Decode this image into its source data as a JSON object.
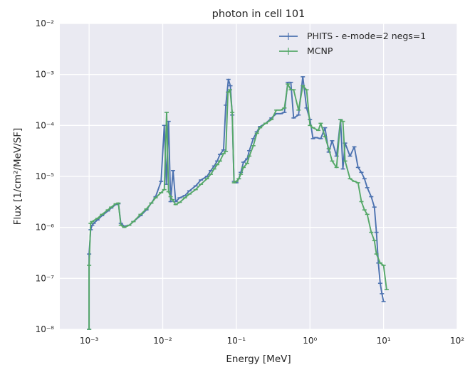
{
  "chart_data": {
    "type": "line",
    "title": "photon in cell 101",
    "xlabel": "Energy [MeV]",
    "ylabel": "Flux [1/cm²/MeV/SF]",
    "x_scale": "log",
    "y_scale": "log",
    "xlim": [
      0.0004,
      100
    ],
    "ylim": [
      1e-08,
      0.01
    ],
    "grid": true,
    "legend_position": "top-right",
    "x_ticks": [
      {
        "value": 0.001,
        "label": "10⁻³"
      },
      {
        "value": 0.01,
        "label": "10⁻²"
      },
      {
        "value": 0.1,
        "label": "10⁻¹"
      },
      {
        "value": 1,
        "label": "10⁰"
      },
      {
        "value": 10,
        "label": "10¹"
      },
      {
        "value": 100,
        "label": "10²"
      }
    ],
    "y_ticks": [
      {
        "value": 1e-08,
        "label": "10⁻⁸"
      },
      {
        "value": 1e-07,
        "label": "10⁻⁷"
      },
      {
        "value": 1e-06,
        "label": "10⁻⁶"
      },
      {
        "value": 1e-05,
        "label": "10⁻⁵"
      },
      {
        "value": 0.0001,
        "label": "10⁻⁴"
      },
      {
        "value": 0.001,
        "label": "10⁻³"
      },
      {
        "value": 0.01,
        "label": "10⁻²"
      }
    ],
    "series": [
      {
        "name": "PHITS - e-mode=2  negs=1",
        "color": "#4c72b0",
        "points": [
          [
            0.001,
            1e-08
          ],
          [
            0.001,
            3e-07
          ],
          [
            0.00105,
            9e-07
          ],
          [
            0.0011,
            1.1e-06
          ],
          [
            0.00115,
            1.2e-06
          ],
          [
            0.0013,
            1.4e-06
          ],
          [
            0.0015,
            1.7e-06
          ],
          [
            0.0018,
            2.1e-06
          ],
          [
            0.002,
            2.4e-06
          ],
          [
            0.0023,
            2.8e-06
          ],
          [
            0.0025,
            2.9e-06
          ],
          [
            0.0027,
            1.2e-06
          ],
          [
            0.003,
            1.05e-06
          ],
          [
            0.0035,
            1.1e-06
          ],
          [
            0.004,
            1.3e-06
          ],
          [
            0.005,
            1.7e-06
          ],
          [
            0.006,
            2.2e-06
          ],
          [
            0.007,
            3e-06
          ],
          [
            0.008,
            4e-06
          ],
          [
            0.0095,
            8e-06
          ],
          [
            0.0105,
            0.0001
          ],
          [
            0.0112,
            7e-06
          ],
          [
            0.012,
            0.00012
          ],
          [
            0.0128,
            3.2e-06
          ],
          [
            0.0138,
            1.3e-05
          ],
          [
            0.015,
            3.2e-06
          ],
          [
            0.017,
            3.8e-06
          ],
          [
            0.02,
            4.2e-06
          ],
          [
            0.023,
            5.2e-06
          ],
          [
            0.028,
            6.5e-06
          ],
          [
            0.033,
            8.5e-06
          ],
          [
            0.04,
            1e-05
          ],
          [
            0.045,
            1.3e-05
          ],
          [
            0.05,
            1.6e-05
          ],
          [
            0.055,
            2e-05
          ],
          [
            0.06,
            2.7e-05
          ],
          [
            0.067,
            3.3e-05
          ],
          [
            0.072,
            0.00025
          ],
          [
            0.078,
            0.0008
          ],
          [
            0.083,
            0.0006
          ],
          [
            0.088,
            0.00016
          ],
          [
            0.093,
            8e-06
          ],
          [
            0.1,
            7.5e-06
          ],
          [
            0.108,
            9e-06
          ],
          [
            0.115,
            1.2e-05
          ],
          [
            0.125,
            1.9e-05
          ],
          [
            0.14,
            2.2e-05
          ],
          [
            0.15,
            3.2e-05
          ],
          [
            0.17,
            5.5e-05
          ],
          [
            0.19,
            7.5e-05
          ],
          [
            0.21,
            9.5e-05
          ],
          [
            0.25,
            0.00011
          ],
          [
            0.3,
            0.00014
          ],
          [
            0.35,
            0.00017
          ],
          [
            0.4,
            0.00017
          ],
          [
            0.45,
            0.00018
          ],
          [
            0.5,
            0.0007
          ],
          [
            0.55,
            0.0007
          ],
          [
            0.6,
            0.00014
          ],
          [
            0.7,
            0.00016
          ],
          [
            0.8,
            0.0009
          ],
          [
            0.9,
            0.00022
          ],
          [
            1.0,
            0.00013
          ],
          [
            1.1,
            5.5e-05
          ],
          [
            1.2,
            5.8e-05
          ],
          [
            1.4,
            5.5e-05
          ],
          [
            1.6,
            9e-05
          ],
          [
            1.8,
            3e-05
          ],
          [
            2.0,
            5e-05
          ],
          [
            2.3,
            2.5e-05
          ],
          [
            2.6,
            0.00013
          ],
          [
            2.8,
            1.4e-05
          ],
          [
            3.0,
            4.5e-05
          ],
          [
            3.5,
            2.5e-05
          ],
          [
            4.0,
            3.8e-05
          ],
          [
            4.5,
            1.5e-05
          ],
          [
            5.0,
            1.2e-05
          ],
          [
            5.5,
            9e-06
          ],
          [
            6.0,
            6e-06
          ],
          [
            6.8,
            4e-06
          ],
          [
            7.5,
            2.5e-06
          ],
          [
            8.0,
            8e-07
          ],
          [
            8.5,
            2e-07
          ],
          [
            9.0,
            8e-08
          ],
          [
            9.5,
            5e-08
          ],
          [
            10.0,
            3.5e-08
          ]
        ]
      },
      {
        "name": "MCNP",
        "color": "#55a868",
        "points": [
          [
            0.001,
            1e-08
          ],
          [
            0.001,
            1.8e-07
          ],
          [
            0.00105,
            1.2e-06
          ],
          [
            0.0011,
            1.3e-06
          ],
          [
            0.0013,
            1.5e-06
          ],
          [
            0.0015,
            1.8e-06
          ],
          [
            0.0018,
            2.2e-06
          ],
          [
            0.002,
            2.5e-06
          ],
          [
            0.0023,
            2.9e-06
          ],
          [
            0.0025,
            3e-06
          ],
          [
            0.0027,
            1.1e-06
          ],
          [
            0.003,
            1e-06
          ],
          [
            0.0035,
            1.1e-06
          ],
          [
            0.004,
            1.3e-06
          ],
          [
            0.005,
            1.8e-06
          ],
          [
            0.006,
            2.3e-06
          ],
          [
            0.007,
            3e-06
          ],
          [
            0.008,
            3.8e-06
          ],
          [
            0.0095,
            4.8e-06
          ],
          [
            0.0105,
            5.5e-06
          ],
          [
            0.0113,
            0.00018
          ],
          [
            0.012,
            5e-06
          ],
          [
            0.0128,
            4e-06
          ],
          [
            0.0135,
            3.5e-06
          ],
          [
            0.015,
            2.8e-06
          ],
          [
            0.017,
            3.1e-06
          ],
          [
            0.02,
            3.8e-06
          ],
          [
            0.023,
            4.5e-06
          ],
          [
            0.028,
            5.5e-06
          ],
          [
            0.033,
            7e-06
          ],
          [
            0.04,
            9e-06
          ],
          [
            0.045,
            1.1e-05
          ],
          [
            0.05,
            1.4e-05
          ],
          [
            0.055,
            1.7e-05
          ],
          [
            0.06,
            2e-05
          ],
          [
            0.067,
            2.8e-05
          ],
          [
            0.072,
            3.1e-05
          ],
          [
            0.077,
            0.00045
          ],
          [
            0.082,
            0.0005
          ],
          [
            0.088,
            0.00018
          ],
          [
            0.093,
            7.5e-06
          ],
          [
            0.1,
            8e-06
          ],
          [
            0.108,
            9e-06
          ],
          [
            0.115,
            1.1e-05
          ],
          [
            0.125,
            1.5e-05
          ],
          [
            0.14,
            1.8e-05
          ],
          [
            0.15,
            2.5e-05
          ],
          [
            0.17,
            4e-05
          ],
          [
            0.19,
            7e-05
          ],
          [
            0.21,
            9e-05
          ],
          [
            0.25,
            0.00011
          ],
          [
            0.3,
            0.00013
          ],
          [
            0.35,
            0.0002
          ],
          [
            0.4,
            0.0002
          ],
          [
            0.45,
            0.00022
          ],
          [
            0.5,
            0.00065
          ],
          [
            0.55,
            0.0005
          ],
          [
            0.6,
            0.0005
          ],
          [
            0.7,
            0.0002
          ],
          [
            0.8,
            0.0006
          ],
          [
            0.9,
            0.0005
          ],
          [
            1.0,
            0.0001
          ],
          [
            1.1,
            9e-05
          ],
          [
            1.3,
            8e-05
          ],
          [
            1.4,
            0.00011
          ],
          [
            1.6,
            6e-05
          ],
          [
            1.8,
            3.5e-05
          ],
          [
            2.0,
            2e-05
          ],
          [
            2.3,
            1.5e-05
          ],
          [
            2.6,
            0.00013
          ],
          [
            2.8,
            0.00012
          ],
          [
            3.0,
            2e-05
          ],
          [
            3.5,
            9e-06
          ],
          [
            4.0,
            8e-06
          ],
          [
            4.5,
            7.5e-06
          ],
          [
            5.0,
            3.2e-06
          ],
          [
            5.5,
            2.2e-06
          ],
          [
            6.0,
            1.8e-06
          ],
          [
            6.8,
            8e-07
          ],
          [
            7.5,
            5.5e-07
          ],
          [
            8.0,
            3e-07
          ],
          [
            9.0,
            2e-07
          ],
          [
            10.0,
            1.8e-07
          ],
          [
            11.0,
            6e-08
          ]
        ]
      }
    ]
  }
}
